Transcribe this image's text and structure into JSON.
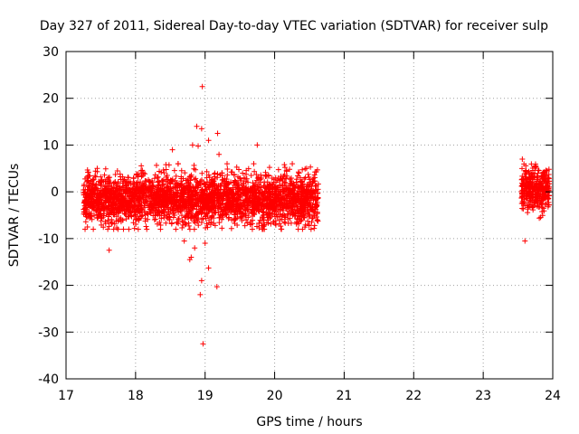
{
  "chart_data": {
    "type": "scatter",
    "title": "Day 327 of 2011, Sidereal Day-to-day VTEC variation (SDTVAR) for receiver sulp",
    "xlabel": "GPS time / hours",
    "ylabel": "SDTVAR / TECUs",
    "xlim": [
      17,
      24
    ],
    "ylim": [
      -40,
      30
    ],
    "x_ticks": [
      17,
      18,
      19,
      20,
      21,
      22,
      23,
      24
    ],
    "y_ticks": [
      -40,
      -30,
      -20,
      -10,
      0,
      10,
      20,
      30
    ],
    "x_tick_labels": [
      "17",
      "18",
      "19",
      "20",
      "21",
      "22",
      "23",
      "24"
    ],
    "y_tick_labels": [
      "-40",
      "-30",
      "-20",
      "-10",
      "0",
      "10",
      "20",
      "30"
    ],
    "grid": true,
    "marker": "+",
    "series_color": "#ff0000",
    "series": [
      {
        "name": "SDTVAR",
        "segments": [
          {
            "x_start": 17.25,
            "x_end": 20.63,
            "center": -1.5,
            "spread": 2.6,
            "envelope": [
              -8,
              6
            ]
          },
          {
            "x_start": 23.55,
            "x_end": 23.95,
            "center": 0.5,
            "spread": 2.2,
            "envelope": [
              -7,
              7
            ]
          }
        ],
        "outliers": [
          {
            "x": 18.96,
            "y": 22.5
          },
          {
            "x": 18.88,
            "y": 14.0
          },
          {
            "x": 18.95,
            "y": 13.5
          },
          {
            "x": 19.18,
            "y": 12.5
          },
          {
            "x": 19.05,
            "y": 11.0
          },
          {
            "x": 18.82,
            "y": 10.0
          },
          {
            "x": 18.9,
            "y": 9.8
          },
          {
            "x": 19.75,
            "y": 10.0
          },
          {
            "x": 18.53,
            "y": 9.0
          },
          {
            "x": 19.2,
            "y": 8.0
          },
          {
            "x": 17.62,
            "y": -12.5
          },
          {
            "x": 18.85,
            "y": -12.0
          },
          {
            "x": 18.8,
            "y": -14.0
          },
          {
            "x": 18.78,
            "y": -14.5
          },
          {
            "x": 19.05,
            "y": -16.3
          },
          {
            "x": 18.95,
            "y": -19.0
          },
          {
            "x": 19.17,
            "y": -20.3
          },
          {
            "x": 18.93,
            "y": -22.0
          },
          {
            "x": 18.97,
            "y": -32.5
          },
          {
            "x": 23.6,
            "y": -10.5
          },
          {
            "x": 18.7,
            "y": -10.5
          },
          {
            "x": 19.0,
            "y": -11.0
          }
        ]
      }
    ]
  }
}
